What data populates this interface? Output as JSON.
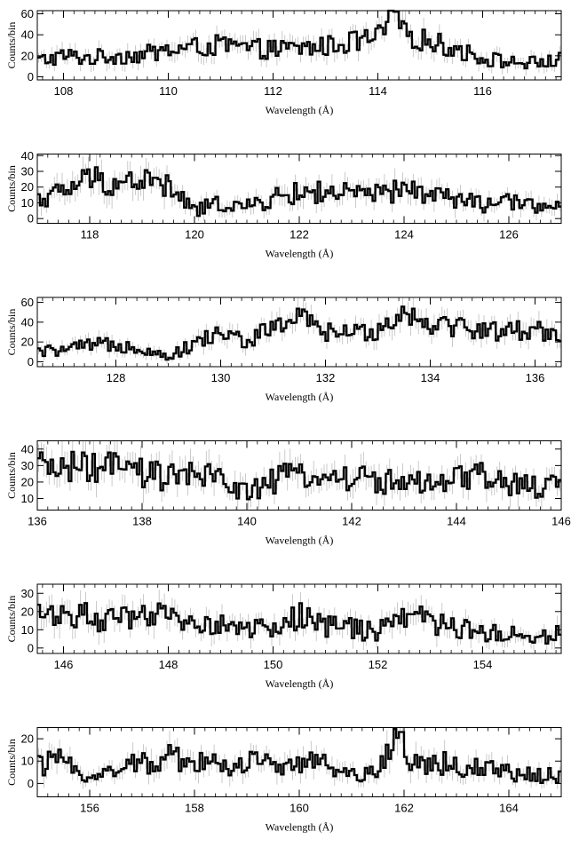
{
  "chart_data": [
    {
      "type": "line",
      "step": true,
      "xlabel": "Wavelength (Å)",
      "ylabel": "Counts/bin",
      "xlim": [
        107.5,
        117.5
      ],
      "ylim": [
        -3,
        63
      ],
      "xticks": [
        108,
        110,
        112,
        114,
        116
      ],
      "xtick_labels": [
        "108",
        "110",
        "112",
        "114",
        "116"
      ],
      "yticks": [
        0,
        20,
        40,
        60
      ],
      "ytick_labels": [
        "0",
        "20",
        "40",
        "60"
      ],
      "grid": false,
      "error_bars": true,
      "peak": {
        "x": 114.35,
        "y": 62
      },
      "x": [
        107.5,
        108.0,
        108.5,
        109.0,
        109.5,
        110.0,
        110.5,
        111.0,
        111.5,
        112.0,
        112.5,
        113.0,
        113.5,
        114.0,
        114.35,
        114.5,
        115.0,
        115.5,
        116.0,
        116.5,
        117.0,
        117.5
      ],
      "y": [
        15,
        20,
        18,
        20,
        21,
        25,
        28,
        30,
        27,
        26,
        27,
        29,
        33,
        37,
        62,
        40,
        34,
        26,
        18,
        14,
        13,
        16
      ],
      "series": [
        {
          "values": [
            15,
            20,
            18,
            20,
            21,
            25,
            28,
            30,
            27,
            26,
            27,
            29,
            33,
            37,
            62,
            40,
            34,
            26,
            18,
            14,
            13,
            16
          ]
        }
      ]
    },
    {
      "type": "line",
      "step": true,
      "xlabel": "Wavelength (Å)",
      "ylabel": "Counts/bin",
      "xlim": [
        117.0,
        127.0
      ],
      "ylim": [
        -3,
        41
      ],
      "xticks": [
        118,
        120,
        122,
        124,
        126
      ],
      "xtick_labels": [
        "118",
        "120",
        "122",
        "124",
        "126"
      ],
      "yticks": [
        0,
        10,
        20,
        30,
        40
      ],
      "ytick_labels": [
        "0",
        "10",
        "20",
        "30",
        "40"
      ],
      "grid": false,
      "error_bars": true,
      "x": [
        117.0,
        117.5,
        118.0,
        118.5,
        119.0,
        119.5,
        120.0,
        120.5,
        121.0,
        121.5,
        122.0,
        122.5,
        123.0,
        123.5,
        124.0,
        124.5,
        125.0,
        125.5,
        126.0,
        126.5,
        127.0
      ],
      "y": [
        12,
        17,
        26,
        22,
        25,
        20,
        5,
        10,
        7,
        13,
        16,
        17,
        15,
        15,
        18,
        16,
        12,
        9,
        10,
        9,
        7
      ],
      "series": [
        {
          "values": [
            12,
            17,
            26,
            22,
            25,
            20,
            5,
            10,
            7,
            13,
            16,
            17,
            15,
            15,
            18,
            16,
            12,
            9,
            10,
            9,
            7
          ]
        }
      ]
    },
    {
      "type": "line",
      "step": true,
      "xlabel": "Wavelength (Å)",
      "ylabel": "Counts/bin",
      "xlim": [
        126.5,
        136.5
      ],
      "ylim": [
        -5,
        65
      ],
      "xticks": [
        128,
        130,
        132,
        134,
        136
      ],
      "xtick_labels": [
        "128",
        "130",
        "132",
        "134",
        "136"
      ],
      "yticks": [
        0,
        20,
        40,
        60
      ],
      "ytick_labels": [
        "0",
        "20",
        "40",
        "60"
      ],
      "grid": false,
      "error_bars": true,
      "x": [
        126.5,
        127.0,
        127.5,
        128.0,
        128.5,
        129.0,
        129.5,
        130.0,
        130.5,
        131.0,
        131.5,
        132.0,
        132.5,
        133.0,
        133.5,
        134.0,
        134.5,
        135.0,
        135.5,
        136.0,
        136.5
      ],
      "y": [
        10,
        12,
        16,
        18,
        14,
        5,
        18,
        30,
        20,
        35,
        45,
        30,
        28,
        33,
        50,
        40,
        36,
        32,
        31,
        33,
        28
      ],
      "series": [
        {
          "values": [
            10,
            12,
            16,
            18,
            14,
            5,
            18,
            30,
            20,
            35,
            45,
            30,
            28,
            33,
            50,
            40,
            36,
            32,
            31,
            33,
            28
          ]
        }
      ]
    },
    {
      "type": "line",
      "step": true,
      "xlabel": "Wavelength (Å)",
      "ylabel": "Counts/bin",
      "xlim": [
        136.0,
        146.0
      ],
      "ylim": [
        3,
        45
      ],
      "xticks": [
        136,
        138,
        140,
        142,
        144,
        146
      ],
      "xtick_labels": [
        "136",
        "138",
        "140",
        "142",
        "144",
        "146"
      ],
      "yticks": [
        10,
        20,
        30,
        40
      ],
      "ytick_labels": [
        "10",
        "20",
        "30",
        "40"
      ],
      "grid": false,
      "error_bars": true,
      "x": [
        136.0,
        136.5,
        137.0,
        137.5,
        138.0,
        138.5,
        139.0,
        139.5,
        140.0,
        140.5,
        141.0,
        141.5,
        142.0,
        142.5,
        143.0,
        143.5,
        144.0,
        144.5,
        145.0,
        145.5,
        146.0
      ],
      "y": [
        28,
        30,
        28,
        29,
        25,
        23,
        24,
        22,
        14,
        20,
        26,
        22,
        23,
        21,
        20,
        17,
        21,
        24,
        18,
        17,
        18
      ],
      "series": [
        {
          "values": [
            28,
            30,
            28,
            29,
            25,
            23,
            24,
            22,
            14,
            20,
            26,
            22,
            23,
            21,
            20,
            17,
            21,
            24,
            18,
            17,
            18
          ]
        }
      ]
    },
    {
      "type": "line",
      "step": true,
      "xlabel": "Wavelength (Å)",
      "ylabel": "Counts/bin",
      "xlim": [
        145.5,
        155.5
      ],
      "ylim": [
        -3,
        35
      ],
      "xticks": [
        146,
        148,
        150,
        152,
        154
      ],
      "xtick_labels": [
        "146",
        "148",
        "150",
        "152",
        "154"
      ],
      "yticks": [
        0,
        10,
        20,
        30
      ],
      "ytick_labels": [
        "0",
        "10",
        "20",
        "30"
      ],
      "grid": false,
      "error_bars": true,
      "x": [
        145.5,
        146.0,
        146.5,
        147.0,
        147.5,
        148.0,
        148.5,
        149.0,
        149.5,
        150.0,
        150.5,
        151.0,
        151.5,
        152.0,
        152.5,
        153.0,
        153.5,
        154.0,
        154.5,
        155.0,
        155.5
      ],
      "y": [
        18,
        20,
        17,
        15,
        16,
        18,
        14,
        12,
        11,
        10,
        18,
        12,
        11,
        8,
        20,
        14,
        11,
        9,
        8,
        5,
        10
      ],
      "series": [
        {
          "values": [
            18,
            20,
            17,
            15,
            16,
            18,
            14,
            12,
            11,
            10,
            18,
            12,
            11,
            8,
            20,
            14,
            11,
            9,
            8,
            5,
            10
          ]
        }
      ]
    },
    {
      "type": "line",
      "step": true,
      "xlabel": "Wavelength (Å)",
      "ylabel": "Counts/bin",
      "xlim": [
        155.0,
        165.0
      ],
      "ylim": [
        -6,
        25
      ],
      "xticks": [
        156,
        158,
        160,
        162,
        164
      ],
      "xtick_labels": [
        "156",
        "158",
        "160",
        "162",
        "164"
      ],
      "yticks": [
        0,
        10,
        20
      ],
      "ytick_labels": [
        "0",
        "10",
        "20"
      ],
      "grid": false,
      "error_bars": true,
      "peak": {
        "x": 161.95,
        "y": 23
      },
      "x": [
        155.0,
        155.5,
        156.0,
        156.5,
        157.0,
        157.5,
        158.0,
        158.5,
        159.0,
        159.5,
        160.0,
        160.5,
        161.0,
        161.5,
        161.95,
        162.0,
        162.5,
        163.0,
        163.5,
        164.0,
        164.5,
        165.0
      ],
      "y": [
        8,
        10,
        3,
        6,
        9,
        12,
        10,
        8,
        9,
        10,
        9,
        8,
        4,
        6,
        23,
        9,
        10,
        8,
        6,
        5,
        4,
        3
      ],
      "series": [
        {
          "values": [
            8,
            10,
            3,
            6,
            9,
            12,
            10,
            8,
            9,
            10,
            9,
            8,
            4,
            6,
            23,
            9,
            10,
            8,
            6,
            5,
            4,
            3
          ]
        }
      ]
    }
  ]
}
